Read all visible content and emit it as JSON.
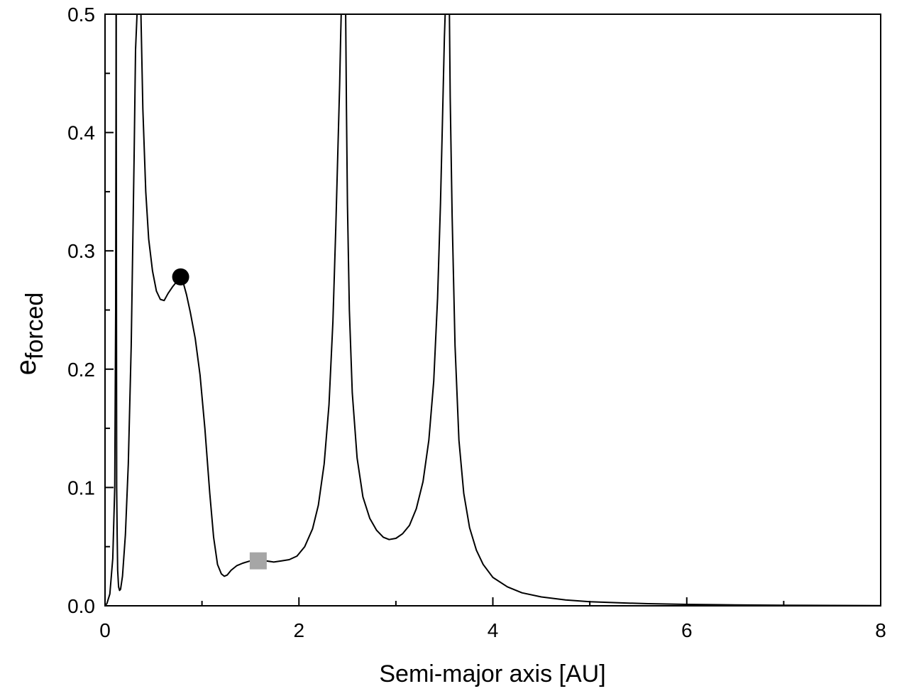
{
  "chart_data": {
    "type": "line",
    "xlabel": "Semi-major axis [AU]",
    "ylabel": {
      "base": "e",
      "subscript": "forced"
    },
    "xlim": [
      0,
      8
    ],
    "ylim": [
      0,
      0.5
    ],
    "x_ticks": [
      0,
      2,
      4,
      6,
      8
    ],
    "x_tick_labels": [
      "0",
      "2",
      "4",
      "6",
      "8"
    ],
    "y_ticks": [
      0.0,
      0.1,
      0.2,
      0.3,
      0.4,
      0.5
    ],
    "y_tick_labels": [
      "0.0",
      "0.1",
      "0.2",
      "0.3",
      "0.4",
      "0.5"
    ],
    "grid": false,
    "legend": "none",
    "line_color": "#000000",
    "series": [
      {
        "segments": [
          {
            "x": [
              0.0,
              0.02,
              0.05,
              0.08,
              0.1,
              0.11,
              0.115
            ],
            "y": [
              0.0,
              0.002,
              0.01,
              0.04,
              0.1,
              0.25,
              0.5
            ]
          },
          {
            "x": [
              0.115,
              0.12,
              0.125,
              0.13,
              0.14,
              0.15,
              0.16,
              0.18,
              0.21,
              0.24,
              0.27,
              0.3,
              0.315,
              0.33
            ],
            "y": [
              0.5,
              0.1,
              0.06,
              0.03,
              0.016,
              0.013,
              0.014,
              0.025,
              0.06,
              0.12,
              0.22,
              0.38,
              0.47,
              0.5
            ]
          },
          {
            "x": [
              0.37,
              0.39,
              0.42,
              0.45,
              0.49,
              0.53,
              0.57,
              0.61,
              0.65,
              0.7,
              0.75,
              0.78,
              0.81,
              0.84,
              0.88,
              0.93,
              0.98,
              1.03,
              1.08,
              1.12,
              1.16,
              1.2,
              1.23,
              1.26,
              1.3,
              1.36,
              1.42,
              1.5,
              1.58,
              1.66,
              1.74,
              1.82,
              1.9,
              1.98,
              2.06,
              2.14,
              2.2,
              2.26,
              2.31,
              2.35,
              2.38,
              2.4,
              2.42,
              2.43,
              2.436
            ],
            "y": [
              0.5,
              0.42,
              0.35,
              0.31,
              0.283,
              0.266,
              0.259,
              0.258,
              0.264,
              0.27,
              0.275,
              0.277,
              0.272,
              0.263,
              0.248,
              0.226,
              0.195,
              0.15,
              0.095,
              0.058,
              0.035,
              0.027,
              0.025,
              0.026,
              0.03,
              0.034,
              0.036,
              0.038,
              0.038,
              0.038,
              0.037,
              0.038,
              0.039,
              0.042,
              0.05,
              0.065,
              0.085,
              0.12,
              0.17,
              0.24,
              0.32,
              0.38,
              0.44,
              0.48,
              0.5
            ]
          },
          {
            "x": [
              2.482,
              2.49,
              2.5,
              2.52,
              2.55,
              2.6,
              2.66,
              2.73,
              2.8,
              2.87,
              2.93,
              3.0,
              3.07,
              3.14,
              3.21,
              3.28,
              3.34,
              3.39,
              3.43,
              3.46,
              3.48,
              3.5,
              3.508
            ],
            "y": [
              0.5,
              0.42,
              0.34,
              0.25,
              0.18,
              0.125,
              0.092,
              0.074,
              0.064,
              0.058,
              0.056,
              0.057,
              0.061,
              0.068,
              0.082,
              0.105,
              0.14,
              0.19,
              0.26,
              0.34,
              0.41,
              0.48,
              0.5
            ]
          },
          {
            "x": [
              3.552,
              3.56,
              3.58,
              3.61,
              3.65,
              3.7,
              3.76,
              3.83,
              3.9,
              4.0,
              4.15,
              4.3,
              4.5,
              4.75,
              5.0,
              5.3,
              5.6,
              6.0,
              6.5,
              7.0,
              7.5,
              8.0
            ],
            "y": [
              0.5,
              0.43,
              0.33,
              0.22,
              0.14,
              0.095,
              0.066,
              0.047,
              0.035,
              0.024,
              0.016,
              0.011,
              0.0075,
              0.005,
              0.0035,
              0.0025,
              0.0018,
              0.0012,
              0.0008,
              0.0005,
              0.0003,
              0.0002
            ]
          }
        ]
      }
    ],
    "markers": [
      {
        "shape": "circle",
        "x": 0.78,
        "y": 0.278,
        "color": "#000000"
      },
      {
        "shape": "square",
        "x": 1.58,
        "y": 0.038,
        "color": "#a6a6a6"
      }
    ]
  }
}
